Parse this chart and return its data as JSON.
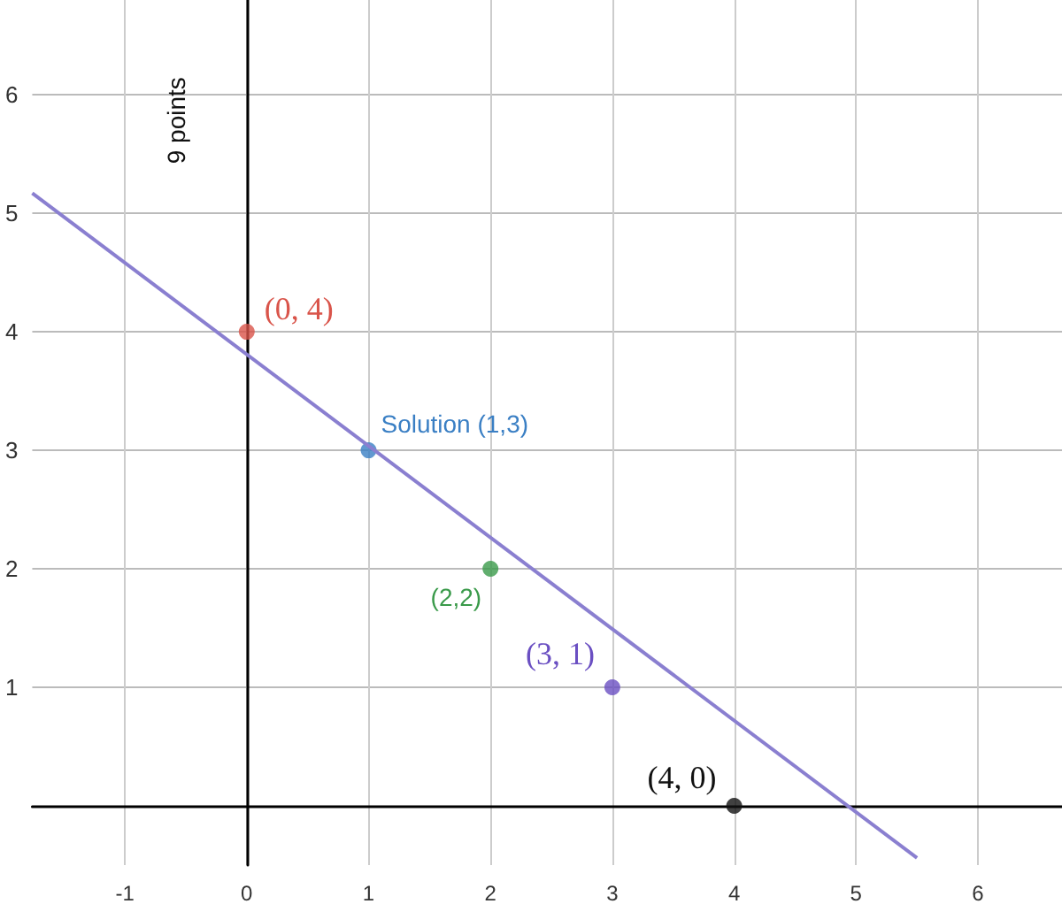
{
  "chart_data": {
    "type": "scatter",
    "ylabel": "9 points",
    "xlim": [
      -1.76,
      6.69
    ],
    "ylim": [
      -0.5,
      6.8
    ],
    "xticks": [
      -1,
      0,
      1,
      2,
      3,
      4,
      5,
      6
    ],
    "yticks": [
      1,
      2,
      3,
      4,
      5,
      6
    ],
    "grid": true,
    "series": [
      {
        "type": "line",
        "color": "#8a7fd0",
        "x": [
          -1.76,
          5.5
        ],
        "values": [
          5.17,
          -0.44
        ],
        "marker": "none"
      },
      {
        "x": [
          0,
          1,
          2,
          3,
          4
        ],
        "values": [
          4,
          3,
          2,
          1,
          0
        ],
        "colors": [
          "#d9544a",
          "#3a7fc4",
          "#3a9a4a",
          "#6a4fc2",
          "#111111"
        ],
        "marker": "circle"
      }
    ],
    "annotations": [
      {
        "text": "(0, 4)",
        "x": 0,
        "y": 4
      },
      {
        "text": "Solution (1,3)",
        "x": 1,
        "y": 3
      },
      {
        "text": "(2,2)",
        "x": 2,
        "y": 2
      },
      {
        "text": "(3, 1)",
        "x": 3,
        "y": 1
      },
      {
        "text": "(4, 0)",
        "x": 4,
        "y": 0
      }
    ]
  }
}
